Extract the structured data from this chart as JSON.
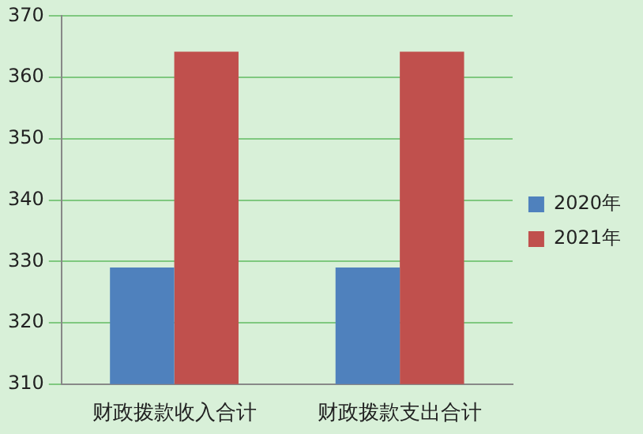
{
  "chart_data": {
    "type": "bar",
    "categories": [
      "财政拨款收入合计",
      "财政拨款支出合计"
    ],
    "series": [
      {
        "name": "2020年",
        "color": "#4f81bd",
        "values": [
          329,
          329
        ]
      },
      {
        "name": "2021年",
        "color": "#c0504d",
        "values": [
          364.2,
          364.2
        ]
      }
    ],
    "ylim": [
      310,
      370
    ],
    "yticks": [
      310,
      320,
      330,
      340,
      350,
      360,
      370
    ],
    "grid": "y",
    "legend": "right"
  }
}
